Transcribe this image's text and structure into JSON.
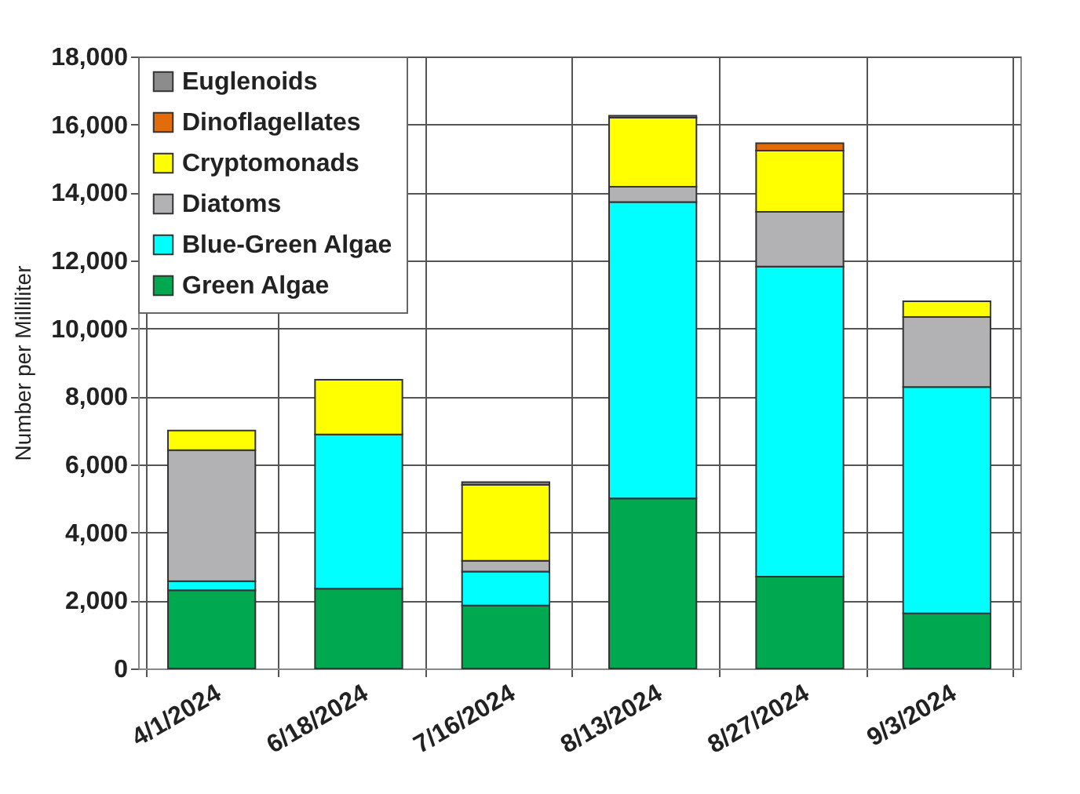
{
  "chart_data": {
    "type": "bar",
    "stacked": true,
    "ylabel": "Number per Milliliter",
    "categories": [
      "4/1/2024",
      "6/18/2024",
      "7/16/2024",
      "8/13/2024",
      "8/27/2024",
      "9/3/2024"
    ],
    "series": [
      {
        "name": "Green Algae",
        "color": "#00a84f",
        "values": [
          2300,
          2350,
          1850,
          5000,
          2700,
          1620
        ]
      },
      {
        "name": "Blue-Green Algae",
        "color": "#00ffff",
        "values": [
          270,
          4530,
          1000,
          8720,
          9120,
          6660
        ]
      },
      {
        "name": "Diatoms",
        "color": "#b2b2b4",
        "values": [
          3850,
          null,
          320,
          450,
          1610,
          2060
        ]
      },
      {
        "name": "Cryptomonads",
        "color": "#ffff00",
        "values": [
          580,
          1610,
          2230,
          2030,
          1800,
          460
        ]
      },
      {
        "name": "Dinoflagellates",
        "color": "#e36c0a",
        "values": [
          null,
          null,
          null,
          null,
          220,
          null
        ]
      },
      {
        "name": "Euglenoids",
        "color": "#8c8c8c",
        "values": [
          null,
          null,
          80,
          60,
          null,
          null
        ]
      }
    ],
    "ylim": [
      0,
      18000
    ],
    "yticks": [
      0,
      {
        "value": 2000,
        "label": "2,000"
      },
      {
        "value": 4000,
        "label": "4,000"
      },
      {
        "value": 6000,
        "label": "6,000"
      },
      {
        "value": 8000,
        "label": "8,000"
      },
      {
        "value": 10000,
        "label": "10,000"
      },
      {
        "value": 12000,
        "label": "12,000"
      },
      {
        "value": 14000,
        "label": "14,000"
      },
      {
        "value": 16000,
        "label": "16,000"
      },
      {
        "value": 18000,
        "label": "18,000"
      }
    ],
    "grid": true,
    "legend": "top left"
  }
}
